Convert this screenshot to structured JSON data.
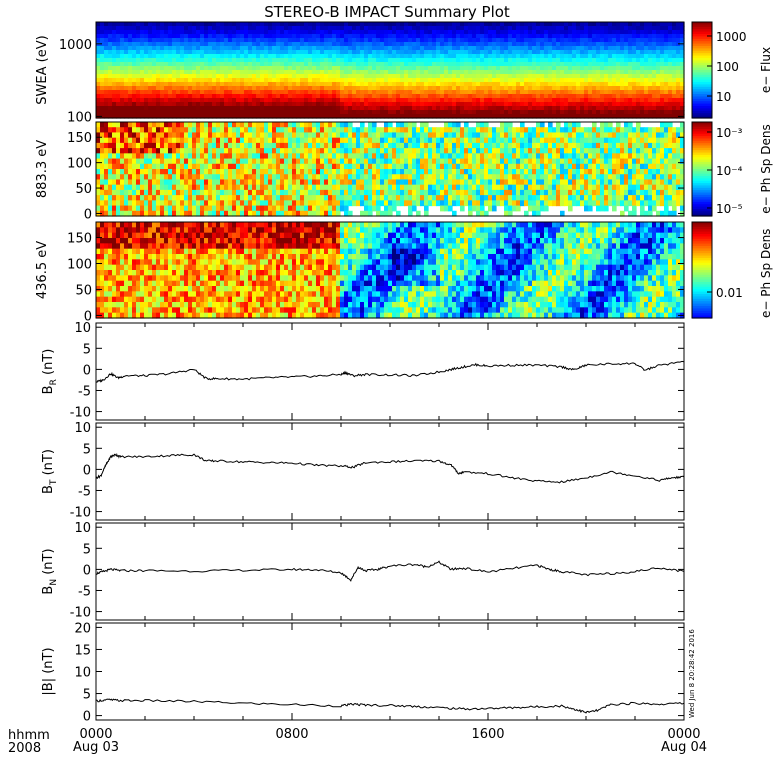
{
  "title": "STEREO-B IMPACT Summary Plot",
  "time_axis": {
    "unit_label": "hhmm",
    "year_label": "2008",
    "ticks": [
      {
        "hours": 0,
        "label": "0000",
        "date": "Aug 03"
      },
      {
        "hours": 8,
        "label": "0800",
        "date": ""
      },
      {
        "hours": 16,
        "label": "1600",
        "date": ""
      },
      {
        "hours": 24,
        "label": "0000",
        "date": "Aug 04"
      }
    ]
  },
  "stamp": "Wed Jun 8 20:28:42 2016",
  "colors": {
    "line": "#000000",
    "background": "#ffffff"
  },
  "chart_data": [
    {
      "type": "heatmap",
      "ylabel": "SWEA (eV)",
      "yscale": "log",
      "yticks": [
        {
          "value": 100,
          "label": "100"
        },
        {
          "value": 1000,
          "label": "1000"
        }
      ],
      "ylim": [
        95,
        2000
      ],
      "colorbar": {
        "label": "e− Flux",
        "scale": "log",
        "ticks": [
          "1000",
          "100",
          "10"
        ],
        "range": [
          3,
          3000
        ]
      }
    },
    {
      "type": "heatmap",
      "ylabel": "883.3 eV",
      "yticks": [
        {
          "value": 0,
          "label": "0"
        },
        {
          "value": 50,
          "label": "50"
        },
        {
          "value": 100,
          "label": "100"
        },
        {
          "value": 150,
          "label": "150"
        }
      ],
      "ylim": [
        -5,
        180
      ],
      "colorbar": {
        "label": "e− Ph Sp Dens",
        "scale": "log",
        "ticks": [
          "10⁻³",
          "10⁻⁴",
          "10⁻⁵"
        ],
        "range": [
          5e-06,
          0.0015
        ]
      }
    },
    {
      "type": "heatmap",
      "ylabel": "436.5 eV",
      "yticks": [
        {
          "value": 0,
          "label": "0"
        },
        {
          "value": 50,
          "label": "50"
        },
        {
          "value": 100,
          "label": "100"
        },
        {
          "value": 150,
          "label": "150"
        }
      ],
      "ylim": [
        -5,
        180
      ],
      "colorbar": {
        "label": "e− Ph Sp Dens",
        "scale": "log",
        "ticks": [
          "0.01"
        ],
        "range": [
          0.003,
          0.2
        ]
      }
    },
    {
      "type": "line",
      "ylabel": "B",
      "ylabel_sub": "R",
      "ylabel_unit": " (nT)",
      "ylim": [
        -12,
        11
      ],
      "yticks": [
        -10,
        -5,
        0,
        5,
        10
      ],
      "x_hours": [
        0,
        0.3,
        0.6,
        0.9,
        1.2,
        2,
        3,
        4,
        4.5,
        5,
        6,
        7,
        8,
        9,
        10,
        10.2,
        10.5,
        11,
        12,
        13,
        14,
        14.5,
        15,
        15.5,
        16,
        17,
        18,
        19,
        19.5,
        20,
        21,
        22,
        22.4,
        23,
        24
      ],
      "y": [
        -3,
        -2.5,
        -1,
        -2,
        -1.5,
        -1.5,
        -1,
        0,
        -2.2,
        -2.2,
        -2.3,
        -2,
        -1.8,
        -1.6,
        -1.2,
        -0.8,
        -1.5,
        -1.2,
        -1.3,
        -1.5,
        -0.6,
        0,
        0.6,
        1.1,
        0.8,
        1,
        1,
        0.6,
        -0.1,
        1,
        1.3,
        1.4,
        -0.2,
        1,
        1.8
      ]
    },
    {
      "type": "line",
      "ylabel": "B",
      "ylabel_sub": "T",
      "ylabel_unit": " (nT)",
      "ylim": [
        -12,
        11
      ],
      "yticks": [
        -10,
        -5,
        0,
        5,
        10
      ],
      "x_hours": [
        0,
        0.2,
        0.4,
        0.6,
        0.8,
        1,
        2,
        3,
        4,
        4.5,
        5,
        6,
        7,
        8,
        9,
        10,
        10.5,
        11,
        12,
        13,
        14,
        14.5,
        14.8,
        15,
        16,
        17,
        18,
        19,
        20,
        21,
        22,
        23,
        23.5,
        24
      ],
      "y": [
        -2,
        -1.5,
        1,
        3,
        3.5,
        3,
        3,
        3.3,
        3.5,
        2,
        2,
        1.8,
        1.6,
        1.5,
        1,
        0.8,
        0.5,
        1.6,
        1.8,
        2,
        2,
        1,
        -1,
        -0.6,
        -1,
        -2,
        -2.8,
        -3,
        -2,
        -0.6,
        -1.5,
        -2.6,
        -2,
        -1.8
      ]
    },
    {
      "type": "line",
      "ylabel": "B",
      "ylabel_sub": "N",
      "ylabel_unit": " (nT)",
      "ylim": [
        -12,
        11
      ],
      "yticks": [
        -10,
        -5,
        0,
        5,
        10
      ],
      "x_hours": [
        0,
        0.3,
        0.6,
        1,
        2,
        4,
        6,
        8,
        9,
        10,
        10.4,
        10.7,
        11,
        11.5,
        12,
        13,
        13.5,
        14,
        14.5,
        15,
        16,
        17,
        18,
        18.5,
        19,
        20,
        21,
        22,
        23,
        24
      ],
      "y": [
        -1,
        -0.5,
        0,
        -0.3,
        -0.3,
        -0.4,
        -0.2,
        0,
        -0.1,
        -0.8,
        -2.5,
        0.5,
        -0.3,
        0,
        0.8,
        1.2,
        0.6,
        1.7,
        0,
        0.3,
        -0.6,
        0.2,
        1,
        0,
        -0.5,
        -1.3,
        -1,
        -0.5,
        0.4,
        -0.5
      ]
    },
    {
      "type": "line",
      "ylabel": "|B| (nT)",
      "ylim": [
        -1,
        21
      ],
      "yticks": [
        0,
        5,
        10,
        15,
        20
      ],
      "x_hours": [
        0,
        0.5,
        1,
        2,
        4,
        6,
        8,
        10,
        10.5,
        11,
        12,
        13,
        14,
        15,
        16,
        17,
        18,
        19,
        19.5,
        20,
        20.5,
        21,
        22,
        23,
        24
      ],
      "y": [
        3.3,
        3.6,
        3.4,
        3.4,
        3.2,
        2.8,
        2.5,
        2.2,
        2.6,
        2.4,
        2.3,
        2.1,
        1.8,
        1.5,
        1.6,
        1.8,
        2,
        2.2,
        1.5,
        0.7,
        1.2,
        2.5,
        2.8,
        2.6,
        2.8
      ]
    }
  ]
}
